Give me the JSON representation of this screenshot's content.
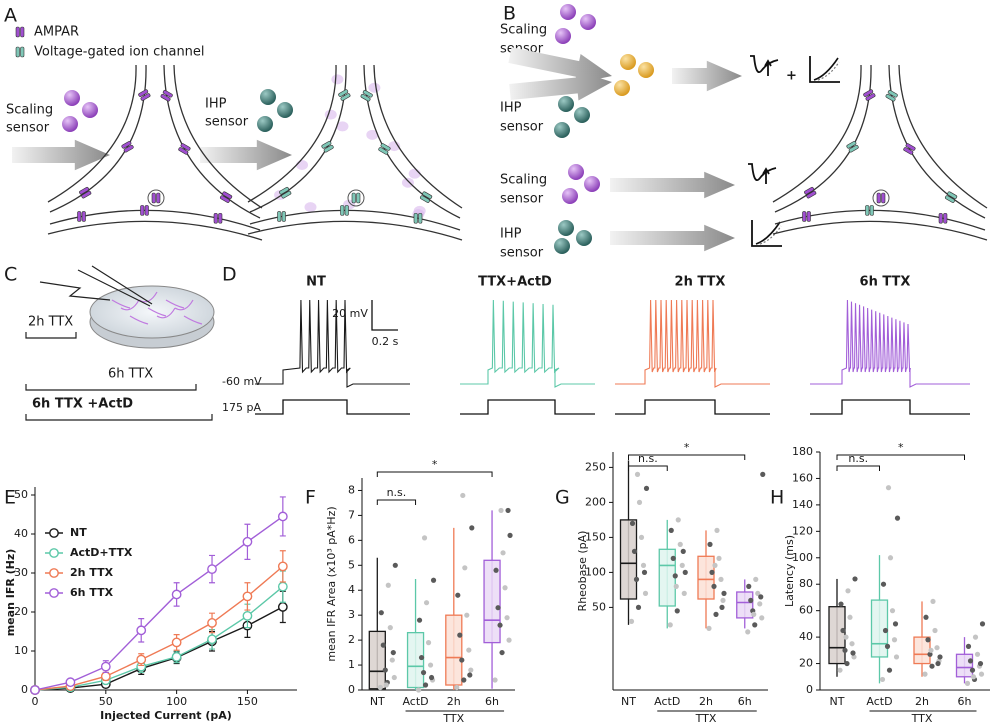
{
  "panel_labels": [
    "A",
    "B",
    "C",
    "D",
    "E",
    "F",
    "G",
    "H"
  ],
  "panel_a": {
    "legend": [
      "AMPAR",
      "Voltage-gated ion channel"
    ],
    "scaling_sensor": [
      "Scaling",
      "sensor"
    ],
    "ihp_sensor": [
      "IHP",
      "sensor"
    ]
  },
  "panel_b": {
    "sensors": [
      [
        "Scaling",
        "sensor"
      ],
      [
        "IHP",
        "sensor"
      ],
      [
        "Scaling",
        "sensor"
      ],
      [
        "IHP",
        "sensor"
      ]
    ],
    "plus": "+"
  },
  "panel_c": {
    "labels": [
      "2h TTX",
      "6h TTX",
      "6h TTX +ActD"
    ]
  },
  "panel_d": {
    "traces": [
      {
        "title": "NT",
        "color": "#1a1a1a",
        "spike_count": 6
      },
      {
        "title": "TTX+ActD",
        "color": "#5cc8a8",
        "spike_count": 7
      },
      {
        "title": "2h TTX",
        "color": "#ef7a55",
        "spike_count": 13
      },
      {
        "title": "6h TTX",
        "color": "#a25fd8",
        "spike_count": 16
      }
    ],
    "scale_voltage": "20 mV",
    "scale_time": "0.2 s",
    "resting": "-60 mV",
    "current": "175 pA"
  },
  "chart_data": [
    {
      "type": "line",
      "x_label": "Injected Current (pA)",
      "y_label": "mean IFR (Hz)",
      "x": [
        0,
        25,
        50,
        75,
        100,
        125,
        150,
        175
      ],
      "xlim": [
        0,
        185
      ],
      "xticks": [
        0,
        50,
        100,
        150
      ],
      "ylim": [
        0,
        50
      ],
      "yticks": [
        0,
        10,
        20,
        30,
        40,
        50
      ],
      "legend": "top-left",
      "series": [
        {
          "name": "NT",
          "color": "#1a1a1a",
          "values": [
            0,
            0.5,
            1.5,
            5.5,
            8.3,
            12.5,
            16.5,
            21.3
          ],
          "errors": [
            0,
            0.3,
            0.5,
            1.5,
            1.5,
            2.5,
            3,
            4
          ]
        },
        {
          "name": "ActD+TTX",
          "color": "#5cc8a8",
          "values": [
            0,
            0.7,
            2.5,
            6,
            8.5,
            13,
            19,
            26.5
          ],
          "errors": [
            0,
            0.3,
            0.8,
            1.5,
            1.5,
            2.5,
            3,
            4
          ]
        },
        {
          "name": "2h TTX",
          "color": "#ef7a55",
          "values": [
            0,
            1,
            3.5,
            7.8,
            12.2,
            17.2,
            24,
            31.7
          ],
          "errors": [
            0,
            0.3,
            1,
            1.5,
            2,
            2.5,
            3.5,
            4
          ]
        },
        {
          "name": "6h TTX",
          "color": "#a25fd8",
          "values": [
            0,
            2,
            6,
            15.3,
            24.5,
            31,
            38,
            44.5
          ],
          "errors": [
            0,
            0.5,
            1.5,
            3,
            3,
            3.5,
            4.5,
            5
          ]
        }
      ]
    },
    {
      "type": "box",
      "y_label": "mean IFR Area (x10³ pA*Hz)",
      "categories": [
        "NT",
        "ActD",
        "2h",
        "6h"
      ],
      "group_label": "TTX",
      "ylim": [
        0,
        8.5
      ],
      "yticks": [
        0,
        1,
        2,
        3,
        4,
        5,
        6,
        7,
        8
      ],
      "colors": [
        "#1a1a1a",
        "#5cc8a8",
        "#ef7a55",
        "#a25fd8"
      ],
      "fills": [
        "#d8d0cc",
        "#dff5ee",
        "#fbe1d6",
        "#ead9f6"
      ],
      "point_colors": [
        "#c4c4c4",
        "#5a5a5a"
      ],
      "boxes": [
        {
          "min": 0,
          "q1": 0.05,
          "median": 0.75,
          "q3": 2.35,
          "max": 5.3
        },
        {
          "min": 0,
          "q1": 0.1,
          "median": 0.95,
          "q3": 2.3,
          "max": 4.45
        },
        {
          "min": 0,
          "q1": 0.2,
          "median": 1.3,
          "q3": 3,
          "max": 6.5
        },
        {
          "min": 0.05,
          "q1": 1.9,
          "median": 2.8,
          "q3": 5.2,
          "max": 7.2
        }
      ],
      "points": [
        [
          0.1,
          0.3,
          0.5,
          0.8,
          1.2,
          1.8,
          2.5,
          3.1,
          4.2,
          5.0,
          0.2,
          1.5
        ],
        [
          0,
          0.2,
          0.4,
          0.7,
          1.0,
          1.3,
          1.9,
          2.8,
          3.5,
          4.4,
          6.1,
          0.5
        ],
        [
          0.1,
          0.4,
          0.8,
          1.2,
          1.6,
          2.2,
          3.0,
          3.8,
          4.9,
          6.5,
          7.8,
          0.6
        ],
        [
          0.4,
          1.5,
          2.0,
          2.6,
          2.9,
          3.3,
          4.1,
          4.8,
          5.5,
          6.2,
          7.2,
          7.2
        ]
      ],
      "annotations": [
        "n.s.",
        "*"
      ]
    },
    {
      "type": "box",
      "y_label": "Rheobase (pA)",
      "categories": [
        "NT",
        "ActD",
        "2h",
        "6h"
      ],
      "group_label": "TTX",
      "ylim": [
        -68,
        272
      ],
      "yticks": [
        50,
        100,
        150,
        200,
        250
      ],
      "colors": [
        "#1a1a1a",
        "#5cc8a8",
        "#ef7a55",
        "#a25fd8"
      ],
      "fills": [
        "#d8d0cc",
        "#dff5ee",
        "#fbe1d6",
        "#ead9f6"
      ],
      "point_colors": [
        "#c4c4c4",
        "#5a5a5a"
      ],
      "boxes": [
        {
          "min": 25,
          "q1": 62,
          "median": 113,
          "q3": 175,
          "max": 260
        },
        {
          "min": 20,
          "q1": 52,
          "median": 110,
          "q3": 133,
          "max": 175
        },
        {
          "min": 20,
          "q1": 62,
          "median": 90,
          "q3": 123,
          "max": 160
        },
        {
          "min": 20,
          "q1": 35,
          "median": 57,
          "q3": 72,
          "max": 90
        }
      ],
      "points": [
        [
          30,
          50,
          70,
          90,
          110,
          130,
          150,
          170,
          200,
          220,
          240,
          100
        ],
        [
          25,
          45,
          70,
          95,
          110,
          120,
          140,
          160,
          175,
          100,
          80,
          130
        ],
        [
          20,
          40,
          60,
          80,
          90,
          100,
          120,
          140,
          160,
          70,
          110,
          50
        ],
        [
          15,
          25,
          35,
          45,
          55,
          60,
          70,
          80,
          90,
          240,
          40,
          65
        ]
      ],
      "annotations": [
        "n.s.",
        "*"
      ]
    },
    {
      "type": "box",
      "y_label": "Latency (ms)",
      "categories": [
        "NT",
        "ActD",
        "2h",
        "6h"
      ],
      "group_label": "TTX",
      "ylim": [
        0,
        180
      ],
      "yticks": [
        0,
        20,
        40,
        60,
        80,
        100,
        120,
        140,
        160,
        180
      ],
      "colors": [
        "#1a1a1a",
        "#5cc8a8",
        "#ef7a55",
        "#a25fd8"
      ],
      "fills": [
        "#d8d0cc",
        "#dff5ee",
        "#fbe1d6",
        "#ead9f6"
      ],
      "point_colors": [
        "#c4c4c4",
        "#5a5a5a"
      ],
      "boxes": [
        {
          "min": 10,
          "q1": 20,
          "median": 32,
          "q3": 63,
          "max": 84
        },
        {
          "min": 5,
          "q1": 25,
          "median": 35,
          "q3": 68,
          "max": 102
        },
        {
          "min": 10,
          "q1": 20,
          "median": 27,
          "q3": 40,
          "max": 67
        },
        {
          "min": 5,
          "q1": 10,
          "median": 17,
          "q3": 27,
          "max": 40
        }
      ],
      "points": [
        [
          15,
          20,
          25,
          30,
          35,
          45,
          55,
          65,
          75,
          84,
          40,
          28
        ],
        [
          8,
          15,
          25,
          33,
          38,
          45,
          60,
          80,
          100,
          130,
          153,
          50
        ],
        [
          12,
          18,
          22,
          27,
          32,
          38,
          45,
          55,
          67,
          25,
          30,
          20
        ],
        [
          5,
          8,
          12,
          15,
          18,
          22,
          27,
          33,
          40,
          50,
          10,
          20
        ]
      ],
      "annotations": [
        "n.s.",
        "*"
      ]
    }
  ]
}
